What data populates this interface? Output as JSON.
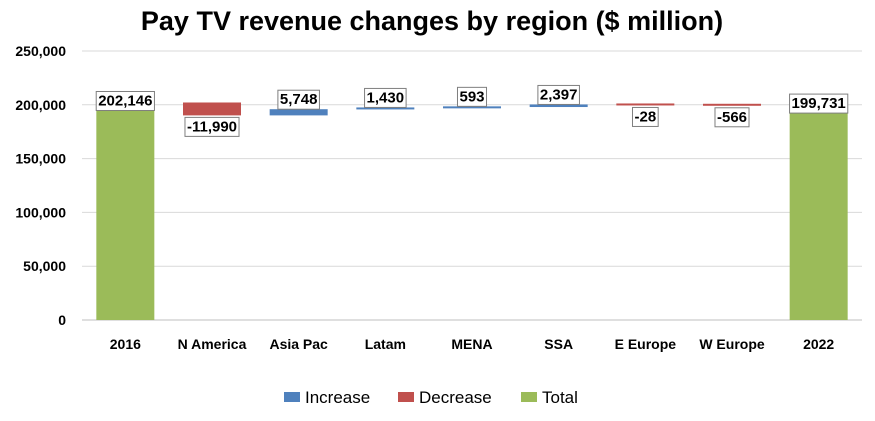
{
  "chart_data": {
    "type": "bar",
    "subtype": "waterfall",
    "title": "Pay TV revenue changes by region ($ million)",
    "xlabel": "",
    "ylabel": "",
    "ylim": [
      0,
      250000
    ],
    "yticks": [
      0,
      50000,
      100000,
      150000,
      200000,
      250000
    ],
    "ytick_labels": [
      "0",
      "50,000",
      "100,000",
      "150,000",
      "200,000",
      "250,000"
    ],
    "grid": true,
    "legend_position": "bottom",
    "categories": [
      "2016",
      "N America",
      "Asia Pac",
      "Latam",
      "MENA",
      "SSA",
      "E Europe",
      "W Europe",
      "2022"
    ],
    "values": [
      202146,
      -11990,
      5748,
      1430,
      593,
      2397,
      -28,
      -566,
      199731
    ],
    "value_labels": [
      "202,146",
      "-11,990",
      "5,748",
      "1,430",
      "593",
      "2,397",
      "-28",
      "-566",
      "199,731"
    ],
    "kinds": [
      "total",
      "decrease",
      "increase",
      "increase",
      "increase",
      "increase",
      "decrease",
      "decrease",
      "total"
    ],
    "legend": [
      {
        "key": "increase",
        "label": "Increase",
        "color": "#4f81bd"
      },
      {
        "key": "decrease",
        "label": "Decrease",
        "color": "#c0504d"
      },
      {
        "key": "total",
        "label": "Total",
        "color": "#9bbb59"
      }
    ]
  }
}
